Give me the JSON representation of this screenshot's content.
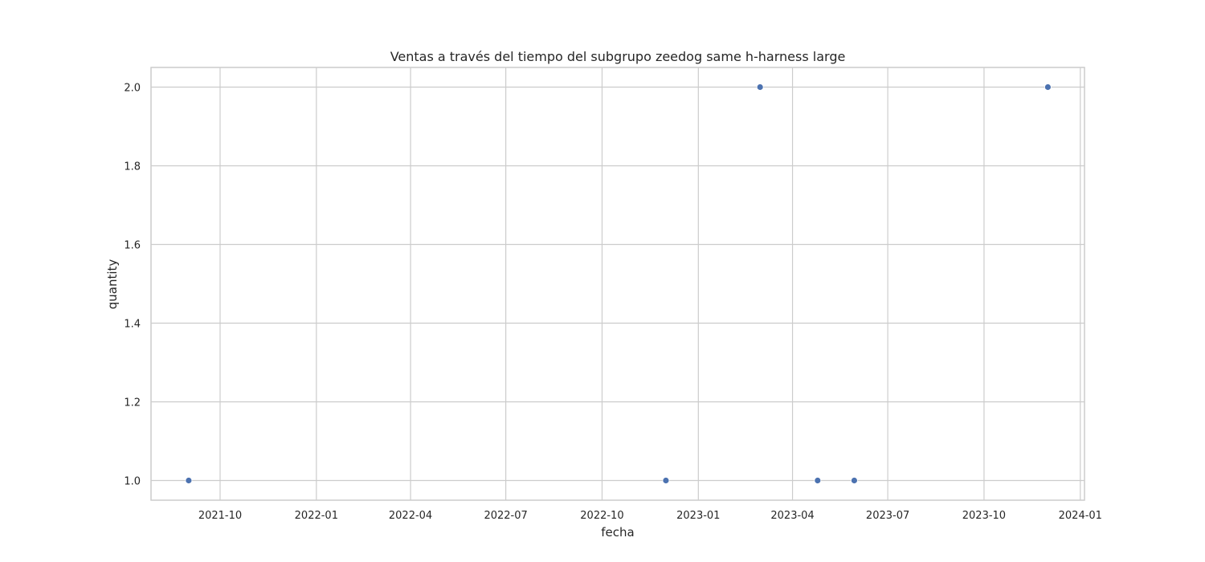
{
  "chart_data": {
    "type": "scatter",
    "title": "Ventas a través del tiempo del subgrupo zeedog same h-harness large",
    "xlabel": "fecha",
    "ylabel": "quantity",
    "x_type": "date",
    "xlim": [
      "2021-07-27",
      "2024-01-05"
    ],
    "ylim": [
      0.95,
      2.05
    ],
    "x_ticks": [
      "2021-10-01",
      "2022-01-01",
      "2022-04-01",
      "2022-07-01",
      "2022-10-01",
      "2023-01-01",
      "2023-04-01",
      "2023-07-01",
      "2023-10-01",
      "2024-01-01"
    ],
    "x_tick_labels": [
      "2021-10",
      "2022-01",
      "2022-04",
      "2022-07",
      "2022-10",
      "2023-01",
      "2023-04",
      "2023-07",
      "2023-10",
      "2024-01"
    ],
    "y_ticks": [
      1.0,
      1.2,
      1.4,
      1.6,
      1.8,
      2.0
    ],
    "y_tick_labels": [
      "1.0",
      "1.2",
      "1.4",
      "1.6",
      "1.8",
      "2.0"
    ],
    "grid": true,
    "color": "#4c72b0",
    "points": [
      {
        "x": "2021-09-01",
        "y": 1
      },
      {
        "x": "2022-12-01",
        "y": 1
      },
      {
        "x": "2023-03-01",
        "y": 2
      },
      {
        "x": "2023-04-25",
        "y": 1
      },
      {
        "x": "2023-05-30",
        "y": 1
      },
      {
        "x": "2023-12-01",
        "y": 2
      }
    ]
  }
}
